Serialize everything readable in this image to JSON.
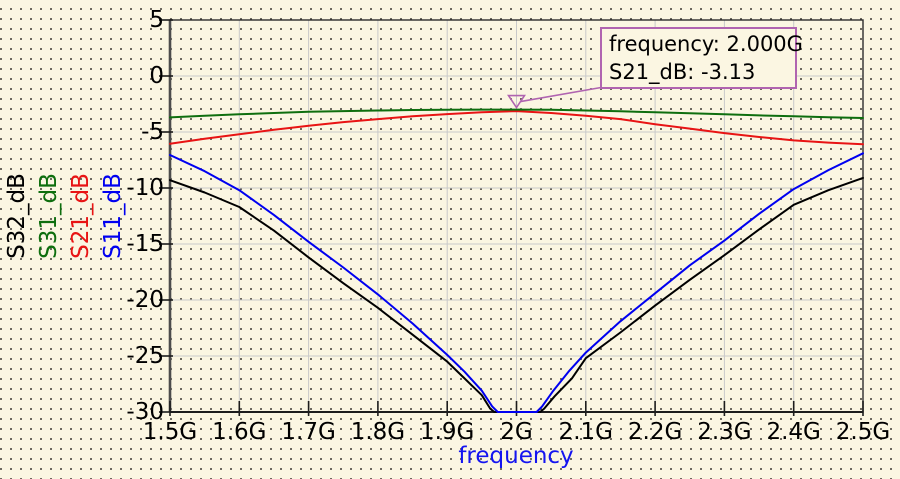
{
  "window": {
    "background_color": "#fbf6e2",
    "grid_dot_color": "#56524a"
  },
  "chart_data": {
    "type": "line",
    "title": "",
    "xlabel": "frequency",
    "xlabel_color": "#1414f0",
    "ylabel": "",
    "xlim": [
      1.5,
      2.5
    ],
    "ylim": [
      -30,
      5
    ],
    "grid": true,
    "gridline_color": "#c9c9c9",
    "frame_color": "#3c3c3c",
    "legend_position": "left-rotated",
    "x_ticks": {
      "values": [
        1.5,
        1.6,
        1.7,
        1.8,
        1.9,
        2.0,
        2.1,
        2.2,
        2.3,
        2.4,
        2.5
      ],
      "labels": [
        "1.5G",
        "1.6G",
        "1.7G",
        "1.8G",
        "1.9G",
        "2G",
        "2.1G",
        "2.2G",
        "2.3G",
        "2.4G",
        "2.5G"
      ]
    },
    "y_ticks": {
      "values": [
        5,
        0,
        -5,
        -10,
        -15,
        -20,
        -25,
        -30
      ],
      "labels": [
        "5",
        "0",
        "-5",
        "-10",
        "-15",
        "-20",
        "-25",
        "-30"
      ]
    },
    "series": [
      {
        "name": "S32_dB",
        "color": "#000000",
        "points": [
          [
            1.5,
            -9.3
          ],
          [
            1.55,
            -10.4
          ],
          [
            1.6,
            -11.7
          ],
          [
            1.65,
            -13.8
          ],
          [
            1.7,
            -16.2
          ],
          [
            1.75,
            -18.5
          ],
          [
            1.8,
            -20.7
          ],
          [
            1.85,
            -23.1
          ],
          [
            1.9,
            -25.5
          ],
          [
            1.925,
            -27.0
          ],
          [
            1.95,
            -28.5
          ],
          [
            1.962,
            -29.7
          ],
          [
            1.968,
            -30
          ],
          [
            2.034,
            -30
          ],
          [
            2.04,
            -29.7
          ],
          [
            2.055,
            -28.6
          ],
          [
            2.08,
            -27.0
          ],
          [
            2.1,
            -25.2
          ],
          [
            2.15,
            -22.9
          ],
          [
            2.2,
            -20.5
          ],
          [
            2.25,
            -18.2
          ],
          [
            2.3,
            -16.0
          ],
          [
            2.35,
            -13.7
          ],
          [
            2.4,
            -11.5
          ],
          [
            2.45,
            -10.2
          ],
          [
            2.5,
            -9.1
          ]
        ]
      },
      {
        "name": "S31_dB",
        "color": "#0e6e0e",
        "points": [
          [
            1.5,
            -3.7
          ],
          [
            1.55,
            -3.55
          ],
          [
            1.6,
            -3.42
          ],
          [
            1.65,
            -3.3
          ],
          [
            1.7,
            -3.2
          ],
          [
            1.75,
            -3.13
          ],
          [
            1.8,
            -3.08
          ],
          [
            1.85,
            -3.04
          ],
          [
            1.9,
            -3.02
          ],
          [
            1.95,
            -3.0
          ],
          [
            2.0,
            -3.0
          ],
          [
            2.05,
            -3.02
          ],
          [
            2.1,
            -3.08
          ],
          [
            2.15,
            -3.15
          ],
          [
            2.2,
            -3.24
          ],
          [
            2.25,
            -3.33
          ],
          [
            2.3,
            -3.42
          ],
          [
            2.35,
            -3.52
          ],
          [
            2.4,
            -3.6
          ],
          [
            2.45,
            -3.68
          ],
          [
            2.5,
            -3.75
          ]
        ]
      },
      {
        "name": "S21_dB",
        "color": "#e81414",
        "points": [
          [
            1.5,
            -6.05
          ],
          [
            1.55,
            -5.6
          ],
          [
            1.6,
            -5.2
          ],
          [
            1.65,
            -4.8
          ],
          [
            1.7,
            -4.45
          ],
          [
            1.75,
            -4.12
          ],
          [
            1.8,
            -3.85
          ],
          [
            1.85,
            -3.6
          ],
          [
            1.9,
            -3.4
          ],
          [
            1.95,
            -3.24
          ],
          [
            2.0,
            -3.13
          ],
          [
            2.05,
            -3.3
          ],
          [
            2.1,
            -3.55
          ],
          [
            2.15,
            -3.85
          ],
          [
            2.2,
            -4.3
          ],
          [
            2.25,
            -4.7
          ],
          [
            2.3,
            -5.1
          ],
          [
            2.35,
            -5.45
          ],
          [
            2.4,
            -5.75
          ],
          [
            2.45,
            -5.95
          ],
          [
            2.5,
            -6.1
          ]
        ]
      },
      {
        "name": "S11_dB",
        "color": "#0000f0",
        "points": [
          [
            1.5,
            -7.05
          ],
          [
            1.55,
            -8.5
          ],
          [
            1.6,
            -10.2
          ],
          [
            1.65,
            -12.4
          ],
          [
            1.7,
            -14.8
          ],
          [
            1.75,
            -17.1
          ],
          [
            1.8,
            -19.5
          ],
          [
            1.85,
            -22.1
          ],
          [
            1.9,
            -24.9
          ],
          [
            1.925,
            -26.4
          ],
          [
            1.95,
            -28.1
          ],
          [
            1.965,
            -29.5
          ],
          [
            1.973,
            -30
          ],
          [
            2.029,
            -30
          ],
          [
            2.037,
            -29.5
          ],
          [
            2.052,
            -28.2
          ],
          [
            2.075,
            -26.4
          ],
          [
            2.1,
            -24.7
          ],
          [
            2.15,
            -21.9
          ],
          [
            2.2,
            -19.4
          ],
          [
            2.25,
            -16.9
          ],
          [
            2.3,
            -14.7
          ],
          [
            2.35,
            -12.3
          ],
          [
            2.4,
            -10.1
          ],
          [
            2.45,
            -8.4
          ],
          [
            2.5,
            -6.9
          ]
        ]
      }
    ],
    "draw_order": [
      "S32_dB",
      "S11_dB",
      "S21_dB",
      "S31_dB"
    ],
    "marker": {
      "series": "S21_dB",
      "frequency": 2.0,
      "value": -3.13,
      "label_line1": "frequency: 2.000G",
      "label_line2": "S21_dB: -3.13",
      "color": "#b064b0"
    }
  }
}
